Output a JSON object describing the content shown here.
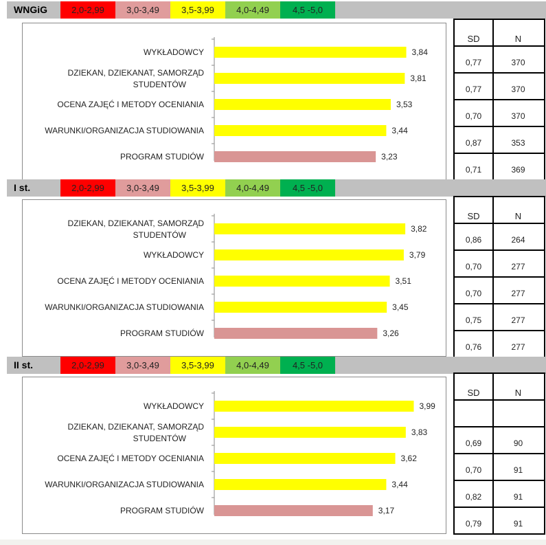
{
  "scale_legend": [
    {
      "label": "2,0-2,99",
      "color": "#ff0000",
      "text_color": "#222222"
    },
    {
      "label": "3,0-3,49",
      "color": "#e09c9c",
      "text_color": "#222222"
    },
    {
      "label": "3,5-3,99",
      "color": "#ffff00",
      "text_color": "#222222"
    },
    {
      "label": "4,0-4,49",
      "color": "#92d050",
      "text_color": "#222222"
    },
    {
      "label": "4,5 -5,0",
      "color": "#00b050",
      "text_color": "#222222"
    }
  ],
  "colors": {
    "yellow": "#ffff00",
    "pink": "#d99594",
    "axis": "#8a8a8a"
  },
  "sections": [
    {
      "title": "WNGiG",
      "stats": {
        "headers": [
          "SD",
          "N"
        ],
        "rows": [
          [
            "0,77",
            "370"
          ],
          [
            "0,77",
            "370"
          ],
          [
            "0,70",
            "370"
          ],
          [
            "0,87",
            "353"
          ],
          [
            "0,71",
            "369"
          ]
        ]
      }
    },
    {
      "title": "I st.",
      "stats": {
        "headers": [
          "SD",
          "N"
        ],
        "rows": [
          [
            "0,86",
            "264"
          ],
          [
            "0,70",
            "277"
          ],
          [
            "0,70",
            "277"
          ],
          [
            "0,75",
            "277"
          ],
          [
            "0,76",
            "277"
          ]
        ]
      }
    },
    {
      "title": "II st.",
      "stats": {
        "headers": [
          "SD",
          "N"
        ],
        "rows": [
          [
            "",
            ""
          ],
          [
            "0,69",
            "90"
          ],
          [
            "0,70",
            "91"
          ],
          [
            "0,82",
            "91"
          ],
          [
            "0,79",
            "91"
          ]
        ]
      }
    }
  ],
  "chart_data": [
    {
      "type": "bar",
      "orientation": "horizontal",
      "categories": [
        "WYKŁADOWCY",
        "DZIEKAN, DZIEKANAT, SAMORZĄD STUDENTÓW",
        "OCENA ZAJĘĆ I METODY OCENIANIA",
        "WARUNKI/ORGANIZACJA STUDIOWANIA",
        "PROGRAM STUDIÓW"
      ],
      "values": [
        3.84,
        3.81,
        3.53,
        3.44,
        3.23
      ],
      "value_labels": [
        "3,84",
        "3,81",
        "3,53",
        "3,44",
        "3,23"
      ],
      "bar_colors": [
        "yellow",
        "yellow",
        "yellow",
        "yellow",
        "pink"
      ],
      "xlim": [
        0,
        5
      ]
    },
    {
      "type": "bar",
      "orientation": "horizontal",
      "categories": [
        "DZIEKAN, DZIEKANAT, SAMORZĄD STUDENTÓW",
        "WYKŁADOWCY",
        "OCENA ZAJĘĆ I METODY OCENIANIA",
        "WARUNKI/ORGANIZACJA STUDIOWANIA",
        "PROGRAM STUDIÓW"
      ],
      "values": [
        3.82,
        3.79,
        3.51,
        3.45,
        3.26
      ],
      "value_labels": [
        "3,82",
        "3,79",
        "3,51",
        "3,45",
        "3,26"
      ],
      "bar_colors": [
        "yellow",
        "yellow",
        "yellow",
        "yellow",
        "pink"
      ],
      "xlim": [
        0,
        5
      ]
    },
    {
      "type": "bar",
      "orientation": "horizontal",
      "categories": [
        "WYKŁADOWCY",
        "DZIEKAN, DZIEKANAT, SAMORZĄD STUDENTÓW",
        "OCENA ZAJĘĆ I METODY OCENIANIA",
        "WARUNKI/ORGANIZACJA STUDIOWANIA",
        "PROGRAM STUDIÓW"
      ],
      "values": [
        3.99,
        3.83,
        3.62,
        3.44,
        3.17
      ],
      "value_labels": [
        "3,99",
        "3,83",
        "3,62",
        "3,44",
        "3,17"
      ],
      "bar_colors": [
        "yellow",
        "yellow",
        "yellow",
        "yellow",
        "pink"
      ],
      "xlim": [
        0,
        5
      ]
    }
  ]
}
